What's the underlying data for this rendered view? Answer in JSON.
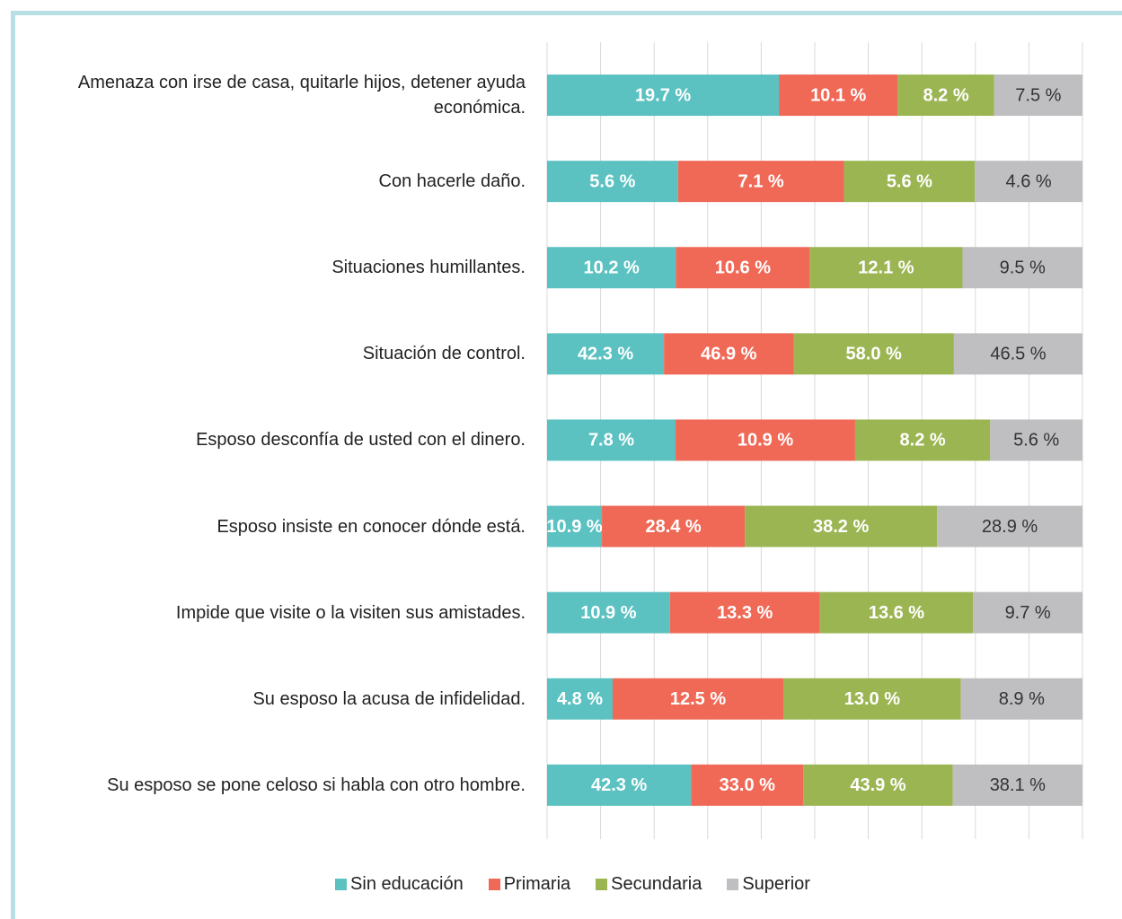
{
  "chart_data": {
    "type": "bar",
    "orientation": "horizontal",
    "stacked": "percent",
    "grid": true,
    "xlim": [
      0,
      100
    ],
    "xticks": [
      0,
      10,
      20,
      30,
      40,
      50,
      60,
      70,
      80,
      90,
      100
    ],
    "categories": [
      "Amenaza con irse de casa, quitarle hijos, detener ayuda económica.",
      "Con hacerle daño.",
      "Situaciones humillantes.",
      "Situación de control.",
      "Esposo desconfía de usted con el dinero.",
      "Esposo insiste en conocer dónde está.",
      "Impide que visite o la visiten sus amistades.",
      "Su esposo la acusa de infidelidad.",
      "Su esposo se pone celoso si habla con otro hombre."
    ],
    "series": [
      {
        "name": "Sin educación",
        "color": "#5bc1c1",
        "label_color": "#ffffff",
        "values": [
          19.7,
          5.6,
          10.2,
          42.3,
          7.8,
          10.9,
          10.9,
          4.8,
          42.3
        ],
        "value_labels": [
          "19.7 %",
          "5.6 %",
          "10.2 %",
          "42.3 %",
          "7.8 %",
          "10.9 %",
          "10.9 %",
          "4.8 %",
          "42.3 %"
        ]
      },
      {
        "name": "Primaria",
        "color": "#f06957",
        "label_color": "#ffffff",
        "values": [
          10.1,
          7.1,
          10.6,
          46.9,
          10.9,
          28.4,
          13.3,
          12.5,
          33.0
        ],
        "value_labels": [
          "10.1 %",
          "7.1 %",
          "10.6 %",
          "46.9 %",
          "10.9 %",
          "28.4 %",
          "13.3 %",
          "12.5 %",
          "33.0 %"
        ]
      },
      {
        "name": "Secundaria",
        "color": "#9bb553",
        "label_color": "#ffffff",
        "values": [
          8.2,
          5.6,
          12.1,
          58.0,
          8.2,
          38.2,
          13.6,
          13.0,
          43.9
        ],
        "value_labels": [
          "8.2 %",
          "5.6 %",
          "12.1 %",
          "58.0 %",
          "8.2 %",
          "38.2 %",
          "13.6 %",
          "13.0 %",
          "43.9 %"
        ]
      },
      {
        "name": "Superior",
        "color": "#bfbfc1",
        "label_color": "#333333",
        "values": [
          7.5,
          4.6,
          9.5,
          46.5,
          5.6,
          28.9,
          9.7,
          8.9,
          38.1
        ],
        "value_labels": [
          "7.5 %",
          "4.6 %",
          "9.5 %",
          "46.5 %",
          "5.6 %",
          "28.9 %",
          "9.7 %",
          "8.9 %",
          "38.1 %"
        ]
      }
    ]
  }
}
